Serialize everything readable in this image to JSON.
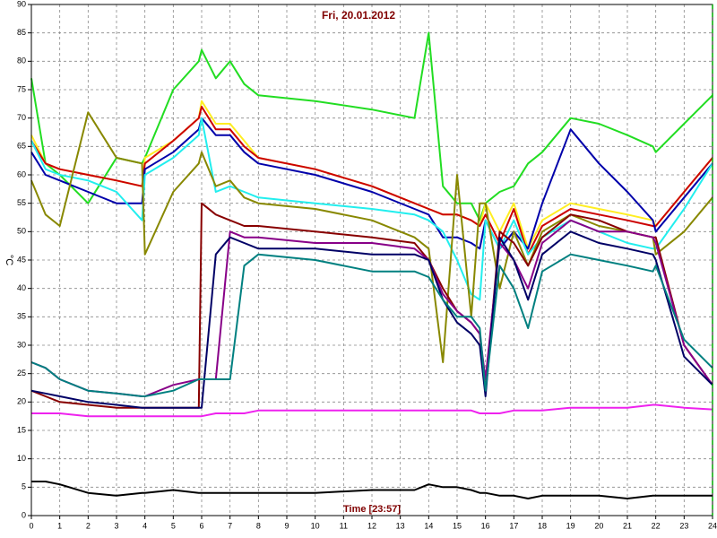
{
  "chart_data": {
    "type": "line",
    "title": "Fri, 20.01.2012",
    "x_label": "Time [23:57]",
    "y_label": "°C",
    "x": [
      0,
      0.5,
      1,
      2,
      3,
      3.9,
      4,
      5,
      5.9,
      6,
      6.5,
      7,
      7.5,
      8,
      10,
      12,
      13.5,
      14,
      14.5,
      15,
      15.5,
      15.8,
      16,
      16.5,
      17,
      17.5,
      18,
      19,
      20,
      21,
      21.9,
      22,
      23,
      24
    ],
    "xlim": [
      0,
      24
    ],
    "xticks": [
      0,
      1,
      2,
      3,
      4,
      5,
      6,
      7,
      8,
      9,
      10,
      11,
      12,
      13,
      14,
      15,
      16,
      17,
      18,
      19,
      20,
      21,
      22,
      23,
      24
    ],
    "ylim": [
      0,
      90
    ],
    "yticks": [
      0,
      5,
      10,
      15,
      20,
      25,
      30,
      35,
      40,
      45,
      50,
      55,
      60,
      65,
      70,
      75,
      80,
      85,
      90
    ],
    "grid": true,
    "series": [
      {
        "color": "#22dd22",
        "values": [
          77,
          62,
          60,
          55,
          63,
          62,
          63,
          75,
          80,
          82,
          77,
          80,
          76,
          74,
          73,
          71.5,
          70,
          85,
          58,
          55,
          55,
          52,
          55,
          57,
          58,
          62,
          64,
          70,
          69,
          67,
          65,
          64,
          69,
          74
        ]
      },
      {
        "color": "#ffee22",
        "values": [
          67,
          62,
          61,
          60,
          59,
          58,
          63,
          66,
          70,
          73,
          69,
          69,
          66,
          63,
          61,
          58,
          55,
          54,
          53,
          53,
          52,
          51,
          55,
          50,
          55,
          47,
          52,
          55,
          54,
          53,
          52,
          51,
          57,
          63
        ]
      },
      {
        "color": "#cc0000",
        "values": [
          66,
          62,
          61,
          60,
          59,
          58,
          62,
          66,
          70,
          72,
          68,
          68,
          65,
          63,
          61,
          58,
          55,
          54,
          53,
          53,
          52,
          51,
          53,
          48,
          54,
          46,
          51,
          54,
          53,
          52,
          51,
          51,
          57,
          63
        ]
      },
      {
        "color": "#0000aa",
        "values": [
          64,
          60,
          59,
          57,
          55,
          55,
          61,
          64,
          68,
          70,
          67,
          67,
          64,
          62,
          60,
          57,
          54,
          53,
          49,
          49,
          48,
          47,
          52,
          47,
          50,
          47,
          55,
          68,
          62,
          57,
          52,
          50,
          56,
          62
        ]
      },
      {
        "color": "#22eeee",
        "values": [
          66,
          61,
          60,
          59,
          57,
          52,
          60,
          63,
          67,
          70,
          57,
          58,
          57,
          56,
          55,
          54,
          53,
          52,
          50,
          45,
          39,
          38,
          52,
          47,
          52,
          46,
          49,
          52,
          50,
          48,
          47,
          47,
          54,
          62
        ]
      },
      {
        "color": "#888800",
        "values": [
          59,
          53,
          51,
          71,
          63,
          62,
          46,
          57,
          62,
          64,
          58,
          59,
          56,
          55,
          54,
          52,
          49,
          47,
          27,
          60,
          35,
          55,
          55,
          40,
          50,
          44,
          50,
          53,
          51,
          50,
          49,
          46,
          50,
          56
        ]
      },
      {
        "color": "#880000",
        "values": [
          22,
          21,
          20,
          19.5,
          19,
          19,
          19,
          19,
          19,
          55,
          53,
          52,
          51,
          51,
          50,
          49,
          48,
          45,
          40,
          36,
          34,
          32,
          22,
          50,
          48,
          44,
          49,
          53,
          52,
          50,
          49,
          49,
          30,
          23
        ]
      },
      {
        "color": "#880088",
        "values": [
          27,
          26,
          24,
          22,
          21.5,
          21,
          21,
          23,
          24,
          24,
          24,
          50,
          49,
          49,
          48,
          48,
          47,
          45,
          39,
          36,
          34,
          32,
          24,
          48,
          45,
          40,
          48,
          52,
          50,
          50,
          49,
          48,
          30,
          23
        ]
      },
      {
        "color": "#000066",
        "values": [
          22,
          21.5,
          21,
          20,
          19.5,
          19,
          19,
          19,
          19,
          19,
          46,
          49,
          48,
          47,
          47,
          46,
          46,
          45,
          38,
          34,
          32,
          30,
          21,
          49,
          45,
          38,
          46,
          50,
          48,
          47,
          46,
          45,
          28,
          23
        ]
      },
      {
        "color": "#008080",
        "values": [
          27,
          26,
          24,
          22,
          21.5,
          21,
          21,
          22,
          24,
          24,
          24,
          24,
          44,
          46,
          45,
          43,
          43,
          42,
          38,
          35,
          35,
          33,
          22,
          44,
          40,
          33,
          43,
          46,
          45,
          44,
          43,
          44,
          31,
          26
        ]
      },
      {
        "color": "#ee22ee",
        "values": [
          18,
          18,
          18,
          17.5,
          17.5,
          17.5,
          17.5,
          17.5,
          17.5,
          17.5,
          18,
          18,
          18,
          18.5,
          18.5,
          18.5,
          18.5,
          18.5,
          18.5,
          18.5,
          18.5,
          18,
          18,
          18,
          18.5,
          18.5,
          18.5,
          19,
          19,
          19,
          19.5,
          19.5,
          19,
          18.7
        ]
      },
      {
        "color": "#000000",
        "values": [
          6,
          6,
          5.5,
          4,
          3.5,
          4,
          4,
          4.5,
          4,
          4,
          4,
          4,
          4,
          4,
          4,
          4.5,
          4.5,
          5.5,
          5,
          5,
          4.5,
          4,
          4,
          3.5,
          3.5,
          3,
          3.5,
          3.5,
          3.5,
          3,
          3.5,
          3.5,
          3.5,
          3.5
        ]
      }
    ]
  }
}
